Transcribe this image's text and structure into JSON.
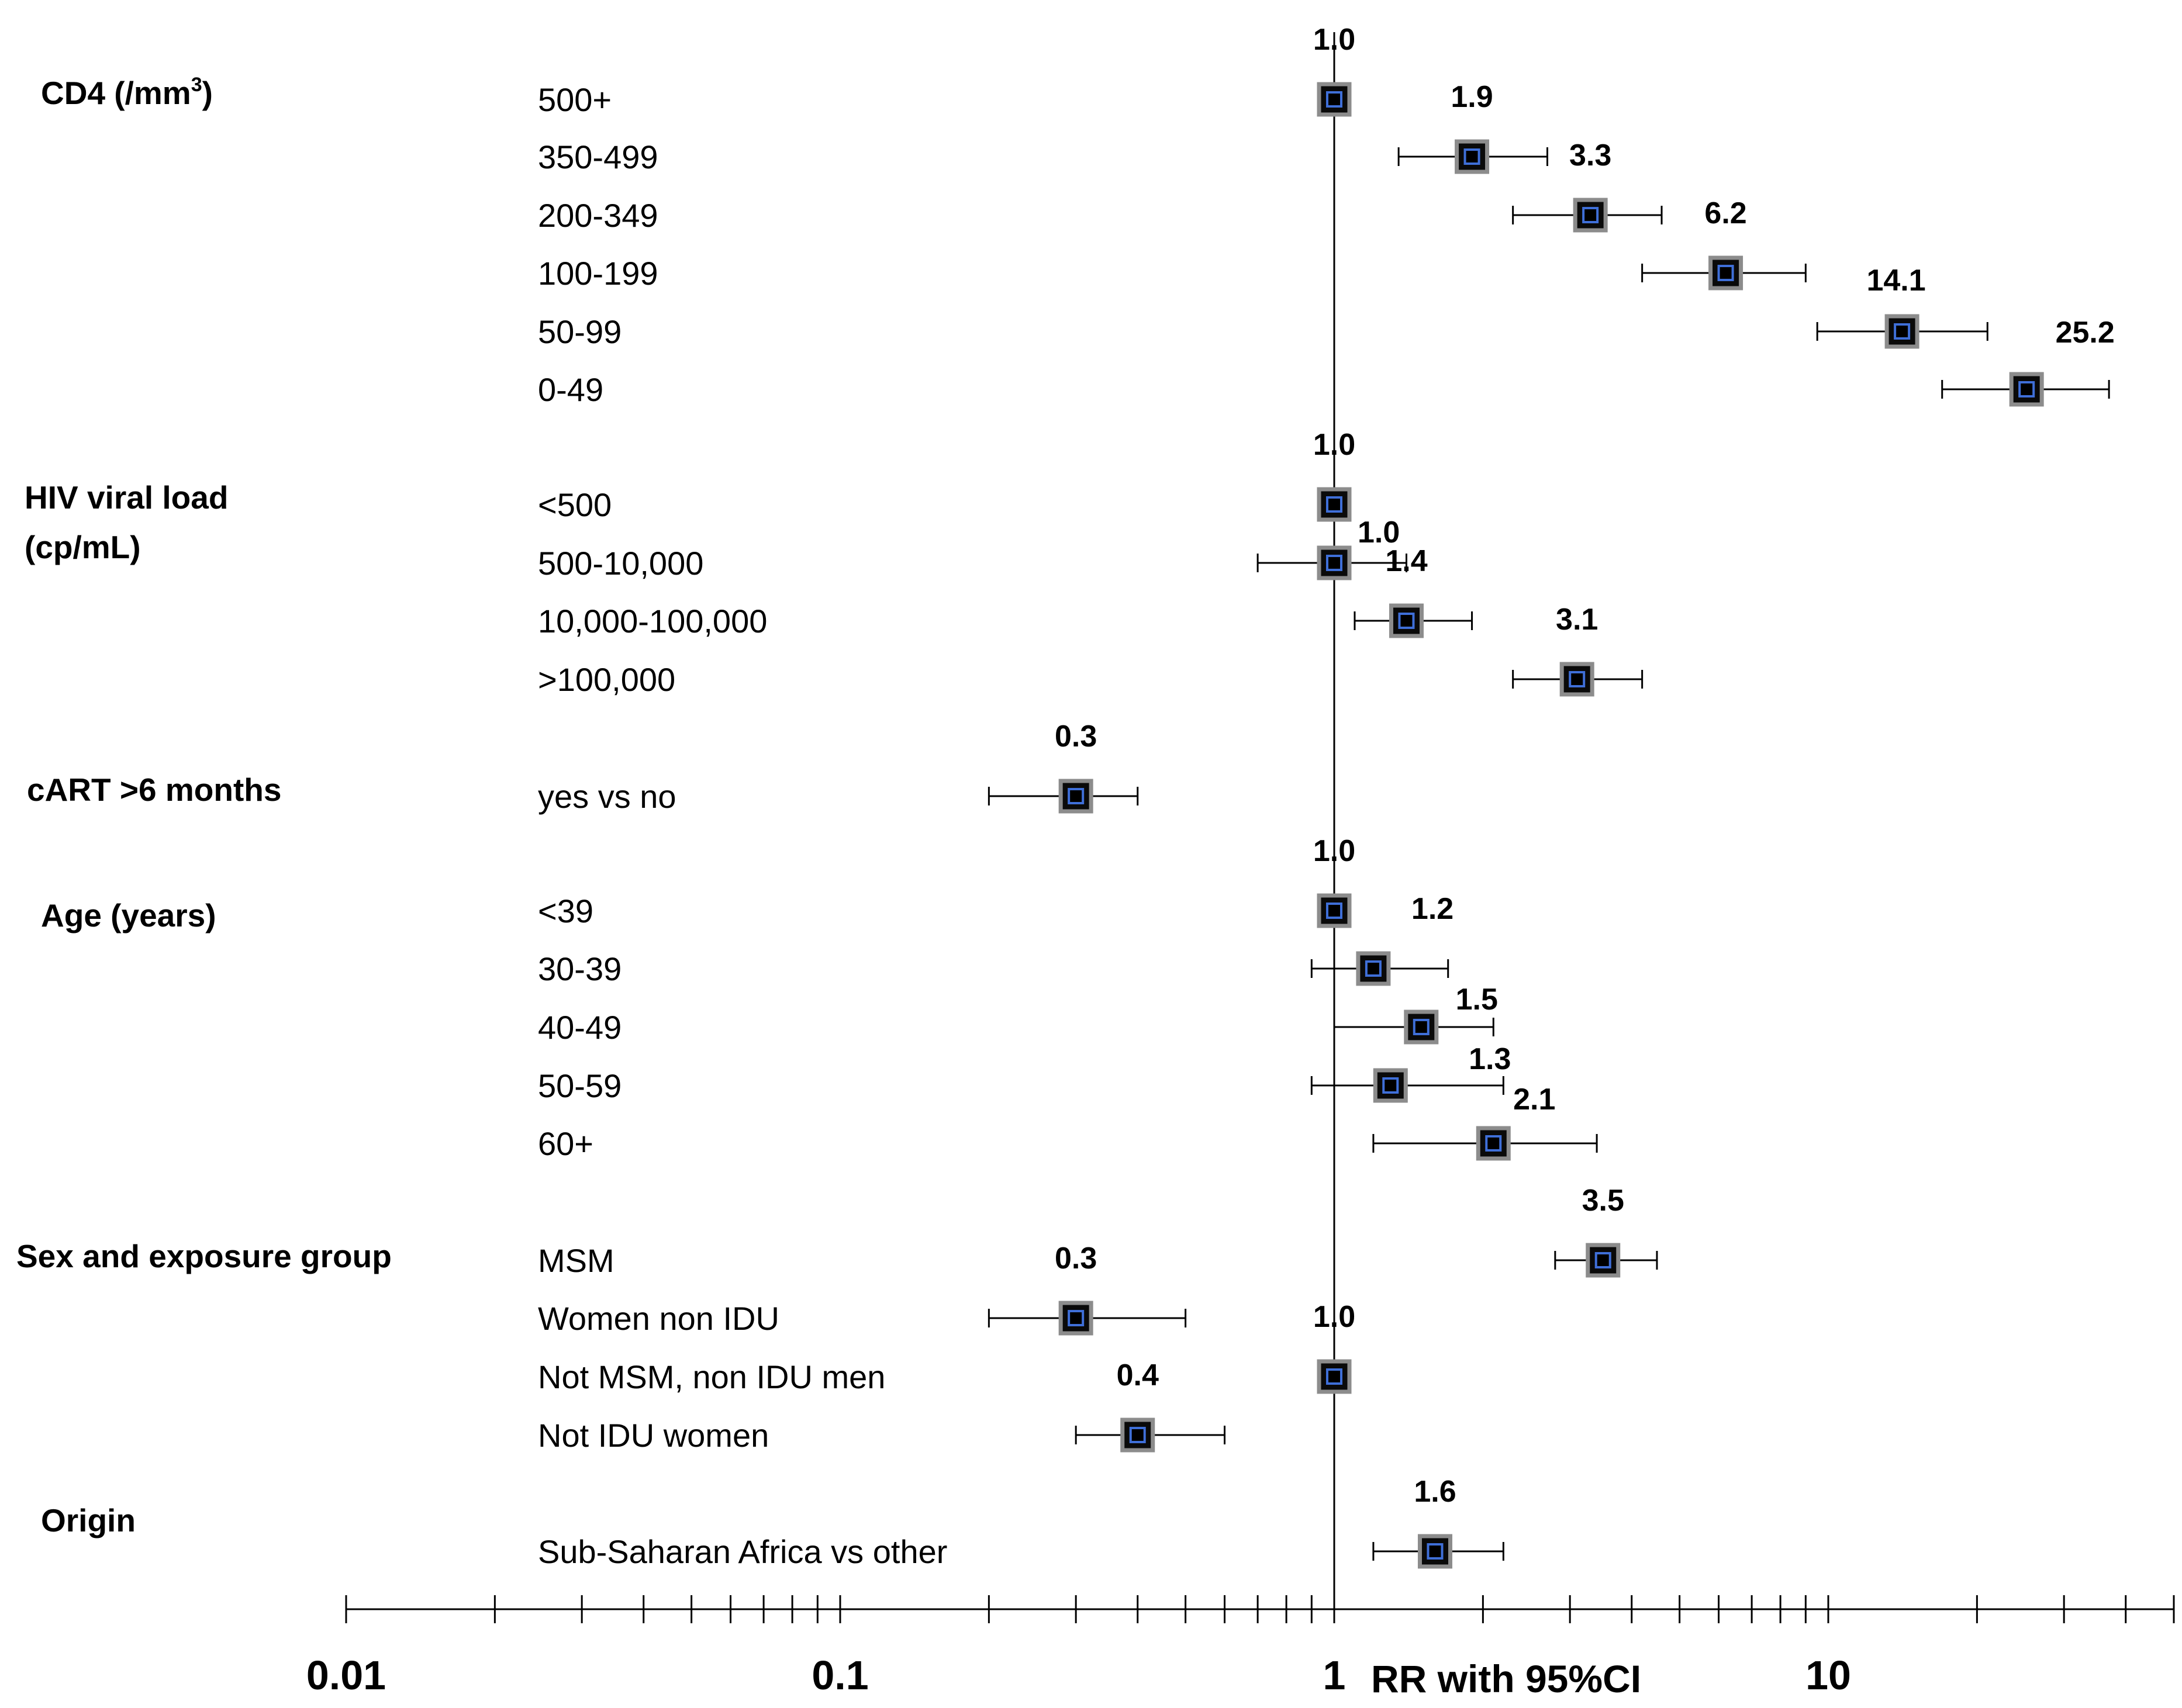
{
  "chart_data": {
    "type": "forest",
    "xlabel": "RR with 95%CI",
    "xscale": "log",
    "xlim": [
      0.01,
      40
    ],
    "reference_line": 1,
    "major_tick_labels": [
      "0.01",
      "0.1",
      "1",
      "10"
    ],
    "groups": [
      {
        "label": "CD4 (/mm",
        "label_sup": "3",
        "label_end": ")",
        "rows": [
          {
            "level": "500+",
            "rr": 1.0,
            "label": "1.0",
            "ci": null
          },
          {
            "level": "350-499",
            "rr": 1.9,
            "label": "1.9",
            "ci": [
              1.35,
              2.7
            ]
          },
          {
            "level": "200-349",
            "rr": 3.3,
            "label": "3.3",
            "ci": [
              2.3,
              4.6
            ]
          },
          {
            "level": "100-199",
            "rr": 6.2,
            "label": "6.2",
            "ci": [
              4.2,
              9.0
            ]
          },
          {
            "level": "50-99",
            "rr": 14.1,
            "label": "14.1",
            "ci": [
              9.5,
              21.0
            ]
          },
          {
            "level": "0-49",
            "rr": 25.2,
            "label": "25.2",
            "ci": [
              17.0,
              37.0
            ]
          }
        ]
      },
      {
        "label": "HIV viral load",
        "label_line2": "(cp/mL)",
        "rows": [
          {
            "level": "<500",
            "rr": 1.0,
            "label": "1.0",
            "ci": null
          },
          {
            "level": "500-10,000",
            "rr": 1.0,
            "label": "1.0",
            "ci": [
              0.7,
              1.4
            ]
          },
          {
            "level": "10,000-100,000",
            "rr": 1.4,
            "label": "1.4",
            "ci": [
              1.1,
              1.9
            ]
          },
          {
            "level": ">100,000",
            "rr": 3.1,
            "label": "3.1",
            "ci": [
              2.3,
              4.2
            ]
          }
        ]
      },
      {
        "label": "cART >6 months",
        "rows": [
          {
            "level": "yes vs no",
            "rr": 0.3,
            "label": "0.3",
            "ci": [
              0.2,
              0.4
            ]
          }
        ]
      },
      {
        "label": "Age (years)",
        "rows": [
          {
            "level": "<39",
            "rr": 1.0,
            "label": "1.0",
            "ci": null
          },
          {
            "level": "30-39",
            "rr": 1.2,
            "label": "1.2",
            "ci": [
              0.9,
              1.7
            ]
          },
          {
            "level": "40-49",
            "rr": 1.5,
            "label": "1.5",
            "ci": [
              1.0,
              2.1
            ]
          },
          {
            "level": "50-59",
            "rr": 1.3,
            "label": "1.3",
            "ci": [
              0.9,
              2.2
            ]
          },
          {
            "level": "60+",
            "rr": 2.1,
            "label": "2.1",
            "ci": [
              1.2,
              3.4
            ]
          }
        ]
      },
      {
        "label": "Sex and exposure group",
        "rows": [
          {
            "level": "MSM",
            "rr": 3.5,
            "label": "3.5",
            "ci": [
              2.8,
              4.5
            ]
          },
          {
            "level": "Women non IDU",
            "rr": 0.3,
            "label": "0.3",
            "ci": [
              0.2,
              0.5
            ]
          },
          {
            "level": "Not MSM, non IDU men",
            "rr": 1.0,
            "label": "1.0",
            "ci": null
          },
          {
            "level": "Not IDU women",
            "rr": 0.4,
            "label": "0.4",
            "ci": [
              0.3,
              0.6
            ]
          }
        ]
      },
      {
        "label": "Origin",
        "rows": [
          {
            "level": "Sub-Saharan Africa vs other",
            "rr": 1.6,
            "label": "1.6",
            "ci": [
              1.2,
              2.2
            ]
          }
        ]
      }
    ]
  }
}
